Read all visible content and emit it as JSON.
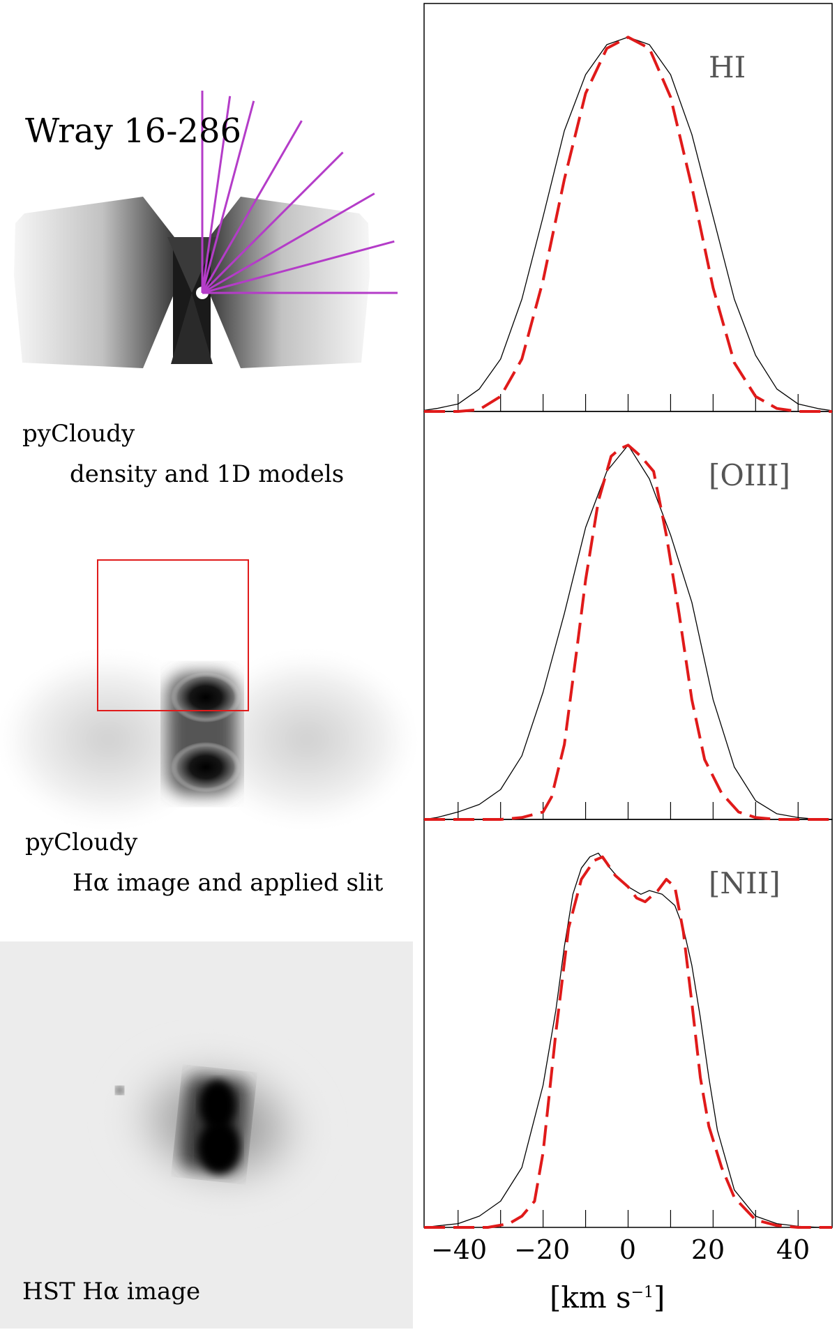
{
  "figure": {
    "object_name": "Wray 16-286",
    "caption1_line1": "pyCloudy",
    "caption1_line2": "density and 1D models",
    "caption2_line1": "pyCloudy",
    "caption2_line2": "Hα image and applied slit",
    "caption3": "HST Hα image"
  },
  "colors": {
    "observed": "#000000",
    "model": "#e01a1a",
    "radial_lines": "#b43cc8",
    "slit_box": "#e01a1a"
  },
  "chart_data": [
    {
      "type": "line",
      "label": "HI",
      "xlim": [
        -48,
        48
      ],
      "ylim": [
        0,
        1.09
      ],
      "series": [
        {
          "style": "solid",
          "x": [
            -50,
            -45,
            -40,
            -35,
            -30,
            -25,
            -20,
            -15,
            -10,
            -5,
            0,
            5,
            10,
            15,
            20,
            25,
            30,
            35,
            40,
            45,
            50
          ],
          "y": [
            0.003,
            0.008,
            0.02,
            0.06,
            0.14,
            0.3,
            0.52,
            0.75,
            0.9,
            0.98,
            1.0,
            0.98,
            0.9,
            0.74,
            0.52,
            0.3,
            0.15,
            0.06,
            0.02,
            0.007,
            0.002
          ]
        },
        {
          "style": "dashed",
          "x": [
            -50,
            -40,
            -35,
            -30,
            -25,
            -20,
            -15,
            -10,
            -5,
            0,
            5,
            10,
            15,
            20,
            25,
            30,
            35,
            40,
            45,
            50
          ],
          "y": [
            0,
            0,
            0.005,
            0.04,
            0.14,
            0.35,
            0.62,
            0.85,
            0.97,
            1.0,
            0.97,
            0.84,
            0.6,
            0.33,
            0.13,
            0.04,
            0.008,
            0,
            0,
            0
          ]
        }
      ]
    },
    {
      "type": "line",
      "label": "[OIII]",
      "xlim": [
        -48,
        48
      ],
      "ylim": [
        0,
        1.09
      ],
      "series": [
        {
          "style": "solid",
          "x": [
            -50,
            -45,
            -40,
            -35,
            -30,
            -25,
            -20,
            -15,
            -10,
            -5,
            0,
            5,
            10,
            15,
            20,
            25,
            30,
            35,
            40,
            45,
            50
          ],
          "y": [
            0,
            0.005,
            0.02,
            0.04,
            0.08,
            0.17,
            0.34,
            0.55,
            0.78,
            0.93,
            1.0,
            0.91,
            0.76,
            0.58,
            0.32,
            0.14,
            0.05,
            0.015,
            0.005,
            0,
            0
          ]
        },
        {
          "style": "dashed",
          "x": [
            -50,
            -40,
            -30,
            -25,
            -20,
            -18,
            -15,
            -12,
            -10,
            -7,
            -4,
            -2,
            0,
            3,
            6,
            9,
            12,
            15,
            18,
            22,
            26,
            30,
            35,
            40,
            50
          ],
          "y": [
            0,
            0,
            0,
            0.005,
            0.02,
            0.06,
            0.2,
            0.46,
            0.64,
            0.85,
            0.97,
            0.99,
            1.0,
            0.97,
            0.93,
            0.76,
            0.55,
            0.32,
            0.16,
            0.07,
            0.02,
            0.005,
            0,
            0,
            0
          ]
        }
      ]
    },
    {
      "type": "line",
      "label": "[NII]",
      "xlim": [
        -48,
        48
      ],
      "ylim": [
        0,
        1.09
      ],
      "series": [
        {
          "style": "solid",
          "x": [
            -50,
            -45,
            -40,
            -35,
            -30,
            -25,
            -20,
            -17,
            -15,
            -13,
            -11,
            -9,
            -7,
            -5,
            -2,
            0,
            3,
            5,
            8,
            11,
            13,
            15,
            17,
            19,
            21,
            25,
            30,
            35,
            40,
            45,
            50
          ],
          "y": [
            0,
            0.004,
            0.01,
            0.03,
            0.07,
            0.16,
            0.38,
            0.58,
            0.75,
            0.89,
            0.96,
            0.99,
            1.0,
            0.97,
            0.93,
            0.91,
            0.89,
            0.9,
            0.89,
            0.86,
            0.8,
            0.7,
            0.56,
            0.4,
            0.26,
            0.1,
            0.03,
            0.01,
            0.003,
            0,
            0
          ]
        },
        {
          "style": "dashed",
          "x": [
            -50,
            -40,
            -33,
            -28,
            -25,
            -22,
            -20,
            -17,
            -14,
            -11,
            -8,
            -6,
            -3,
            0,
            2,
            4,
            7,
            9,
            11,
            13,
            15,
            17,
            19,
            22,
            25,
            30,
            35,
            40,
            45,
            50
          ],
          "y": [
            0,
            0,
            0,
            0.01,
            0.03,
            0.07,
            0.2,
            0.52,
            0.8,
            0.93,
            0.98,
            0.99,
            0.94,
            0.91,
            0.88,
            0.87,
            0.9,
            0.93,
            0.91,
            0.79,
            0.6,
            0.4,
            0.27,
            0.16,
            0.08,
            0.02,
            0.005,
            0,
            0,
            0
          ]
        }
      ]
    }
  ],
  "x_axis": {
    "ticks": [
      -40,
      -20,
      0,
      20,
      40
    ],
    "tick_labels": [
      "−40",
      "−20",
      "0",
      "20",
      "40"
    ],
    "label": "[km s",
    "label_exp": "−1",
    "label_close": "]"
  }
}
